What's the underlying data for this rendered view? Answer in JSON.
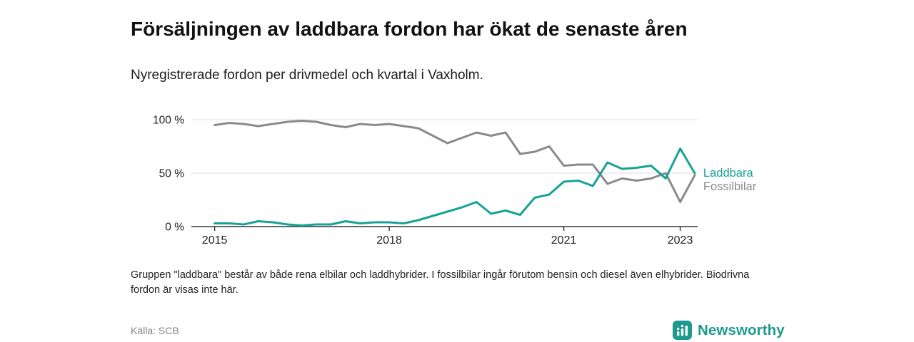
{
  "header": {
    "title": "Försäljningen av laddbara fordon har ökat de senaste åren",
    "subtitle": "Nyregistrerade fordon per drivmedel och kvartal i Vaxholm."
  },
  "chart_data": {
    "type": "line",
    "title": "Nyregistrerade fordon per drivmedel och kvartal i Vaxholm",
    "x_unit": "year-quarter",
    "x": [
      2015.0,
      2015.25,
      2015.5,
      2015.75,
      2016.0,
      2016.25,
      2016.5,
      2016.75,
      2017.0,
      2017.25,
      2017.5,
      2017.75,
      2018.0,
      2018.25,
      2018.5,
      2018.75,
      2019.0,
      2019.25,
      2019.5,
      2019.75,
      2020.0,
      2020.25,
      2020.5,
      2020.75,
      2021.0,
      2021.25,
      2021.5,
      2021.75,
      2022.0,
      2022.25,
      2022.5,
      2022.75,
      2023.0,
      2023.25
    ],
    "series": [
      {
        "name": "Fossilbilar",
        "color": "#8a8a8a",
        "values": [
          95,
          97,
          96,
          94,
          96,
          98,
          99,
          98,
          95,
          93,
          96,
          95,
          96,
          94,
          92,
          85,
          78,
          83,
          88,
          85,
          88,
          68,
          70,
          75,
          57,
          58,
          58,
          40,
          45,
          43,
          45,
          50,
          23,
          48
        ]
      },
      {
        "name": "Laddbara",
        "color": "#17a296",
        "values": [
          3,
          3,
          2,
          5,
          4,
          2,
          1,
          2,
          2,
          5,
          3,
          4,
          4,
          3,
          6,
          10,
          14,
          18,
          23,
          12,
          15,
          11,
          27,
          30,
          42,
          43,
          38,
          60,
          54,
          55,
          57,
          45,
          73,
          50
        ]
      }
    ],
    "yticks": [
      0,
      50,
      100
    ],
    "ytick_labels": [
      "0 %",
      "50 %",
      "100 %"
    ],
    "xticks": [
      2015,
      2018,
      2021,
      2023
    ],
    "xtick_labels": [
      "2015",
      "2018",
      "2021",
      "2023"
    ],
    "ylim": [
      0,
      100
    ],
    "xlim": [
      2014.6,
      2023.3
    ],
    "grid": "horizontal",
    "legend_position": "end-of-line-labels"
  },
  "footnote": "Gruppen \"laddbara\" består av både rena elbilar och laddhybrider. I fossilbilar ingår förutom bensin och diesel även elhybrider. Biodrivna fordon är visas inte här.",
  "source": "Källa: SCB",
  "logo": {
    "text": "Newsworthy",
    "color": "#1c9a90"
  }
}
